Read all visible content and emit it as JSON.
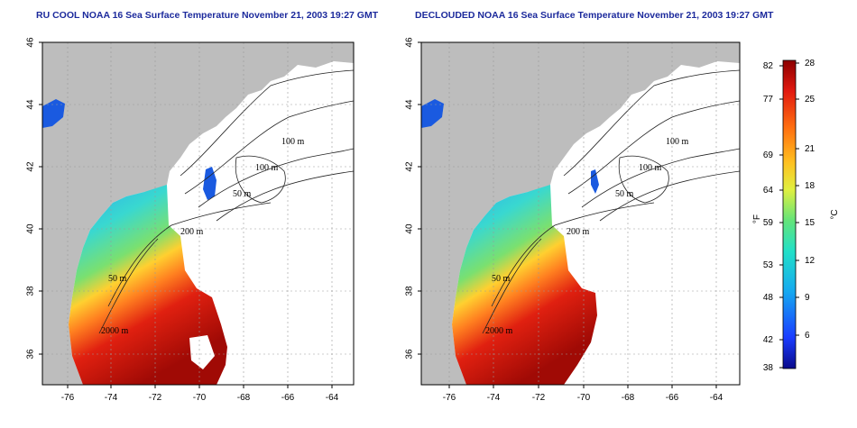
{
  "left_panel": {
    "title": "RU COOL NOAA 16 Sea Surface Temperature November 21, 2003 19:27 GMT",
    "contour_labels": [
      "100 m",
      "100 m",
      "50 m",
      "200 m",
      "50 m",
      "2000 m"
    ]
  },
  "right_panel": {
    "title": "DECLOUDED NOAA 16 Sea Surface Temperature November 21, 2003 19:27 GMT",
    "contour_labels": [
      "100 m",
      "100 m",
      "50 m",
      "200 m",
      "50 m",
      "2000 m"
    ]
  },
  "x_ticks": [
    "-76",
    "-74",
    "-72",
    "-70",
    "-68",
    "-66",
    "-64"
  ],
  "y_ticks": [
    "36",
    "38",
    "40",
    "42",
    "44",
    "46"
  ],
  "colorbar": {
    "fahrenheit_label": "°F",
    "celsius_label": "°C",
    "fahrenheit_ticks": [
      "82",
      "77",
      "69",
      "64",
      "59",
      "53",
      "48",
      "42",
      "38"
    ],
    "celsius_ticks": [
      "28",
      "25",
      "21",
      "18",
      "15",
      "12",
      "9",
      "6"
    ]
  },
  "colors": {
    "land": "#bdbdbd",
    "cloud": "#ffffff",
    "title": "#1c2a9c"
  }
}
